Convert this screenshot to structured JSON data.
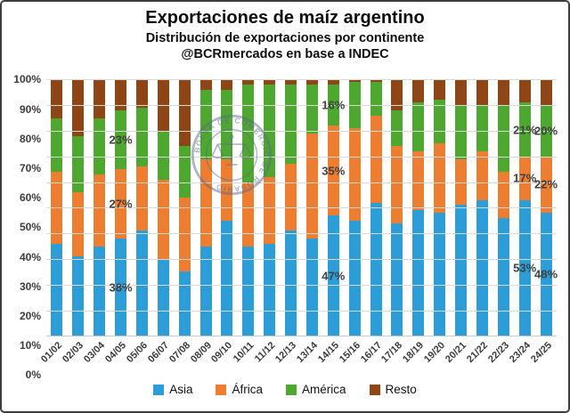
{
  "header": {
    "title": "Exportaciones de maíz argentino",
    "subtitle": "Distribución de exportaciones por continente",
    "credit": "@BCRmercados en base a INDEC"
  },
  "watermark": {
    "text": "BOLSA DE COMERCIO DE ROSARIO",
    "icon": "scales-of-justice-icon",
    "color": "#5c6b8f"
  },
  "colors": {
    "asia": "#2d9dd8",
    "africa": "#ed7d31",
    "america": "#4ea72e",
    "resto": "#8e4617",
    "gridline": "#d9d9d9",
    "axis_text": "#3b3b3b"
  },
  "legend": [
    {
      "label": "Asia",
      "color": "#2d9dd8"
    },
    {
      "label": "África",
      "color": "#ed7d31"
    },
    {
      "label": "América",
      "color": "#4ea72e"
    },
    {
      "label": "Resto",
      "color": "#8e4617"
    }
  ],
  "chart_data": {
    "type": "bar",
    "stacked": true,
    "units": "percent",
    "title": "Exportaciones de maíz argentino",
    "xlabel": "",
    "ylabel": "",
    "ylim": [
      0,
      100
    ],
    "y_ticks": [
      "100%",
      "90%",
      "80%",
      "70%",
      "60%",
      "50%",
      "40%",
      "30%",
      "20%",
      "10%",
      "0%"
    ],
    "grid": "horizontal",
    "legend_position": "bottom",
    "categories": [
      "01/02",
      "02/03",
      "03/04",
      "04/05",
      "05/06",
      "06/07",
      "07/08",
      "08/09",
      "09/10",
      "10/11",
      "11/12",
      "12/13",
      "13/14",
      "14/15",
      "15/16",
      "16/17",
      "17/18",
      "18/19",
      "19/20",
      "20/21",
      "21/22",
      "22/23",
      "23/24",
      "24/25"
    ],
    "series": [
      {
        "name": "Asia",
        "color": "#2d9dd8",
        "values": [
          36,
          31,
          35,
          38,
          41,
          30,
          25,
          35,
          45,
          35,
          36,
          41,
          38,
          47,
          45,
          52,
          44,
          49,
          48,
          51,
          53,
          46,
          53,
          48
        ]
      },
      {
        "name": "África",
        "color": "#ed7d31",
        "values": [
          28,
          25,
          28,
          27,
          25,
          31,
          29,
          34,
          24,
          25,
          26,
          26,
          41,
          35,
          36,
          34,
          30,
          23,
          27,
          18,
          19,
          18,
          17,
          22
        ]
      },
      {
        "name": "América",
        "color": "#4ea72e",
        "values": [
          21,
          22,
          22,
          23,
          23,
          19,
          20,
          27,
          27,
          38,
          36,
          31,
          19,
          16,
          18,
          13,
          14,
          19,
          17,
          21,
          18,
          26,
          21,
          20
        ]
      },
      {
        "name": "Resto",
        "color": "#8e4617",
        "values": [
          15,
          22,
          15,
          12,
          11,
          20,
          26,
          4,
          4,
          2,
          2,
          2,
          2,
          2,
          1,
          1,
          12,
          9,
          8,
          10,
          10,
          10,
          9,
          10
        ]
      }
    ],
    "annotations": [
      {
        "text": "23%",
        "category": "04/05",
        "series": "América"
      },
      {
        "text": "27%",
        "category": "04/05",
        "series": "África"
      },
      {
        "text": "38%",
        "category": "04/05",
        "series": "Asia"
      },
      {
        "text": "16%",
        "category": "14/15",
        "series": "América"
      },
      {
        "text": "35%",
        "category": "14/15",
        "series": "África"
      },
      {
        "text": "47%",
        "category": "14/15",
        "series": "Asia"
      },
      {
        "text": "21%",
        "category": "23/24",
        "series": "América"
      },
      {
        "text": "20%",
        "category": "24/25",
        "series": "América"
      },
      {
        "text": "17%",
        "category": "23/24",
        "series": "África"
      },
      {
        "text": "22%",
        "category": "24/25",
        "series": "África"
      },
      {
        "text": "53%",
        "category": "23/24",
        "series": "Asia"
      },
      {
        "text": "48%",
        "category": "24/25",
        "series": "Asia"
      }
    ]
  }
}
